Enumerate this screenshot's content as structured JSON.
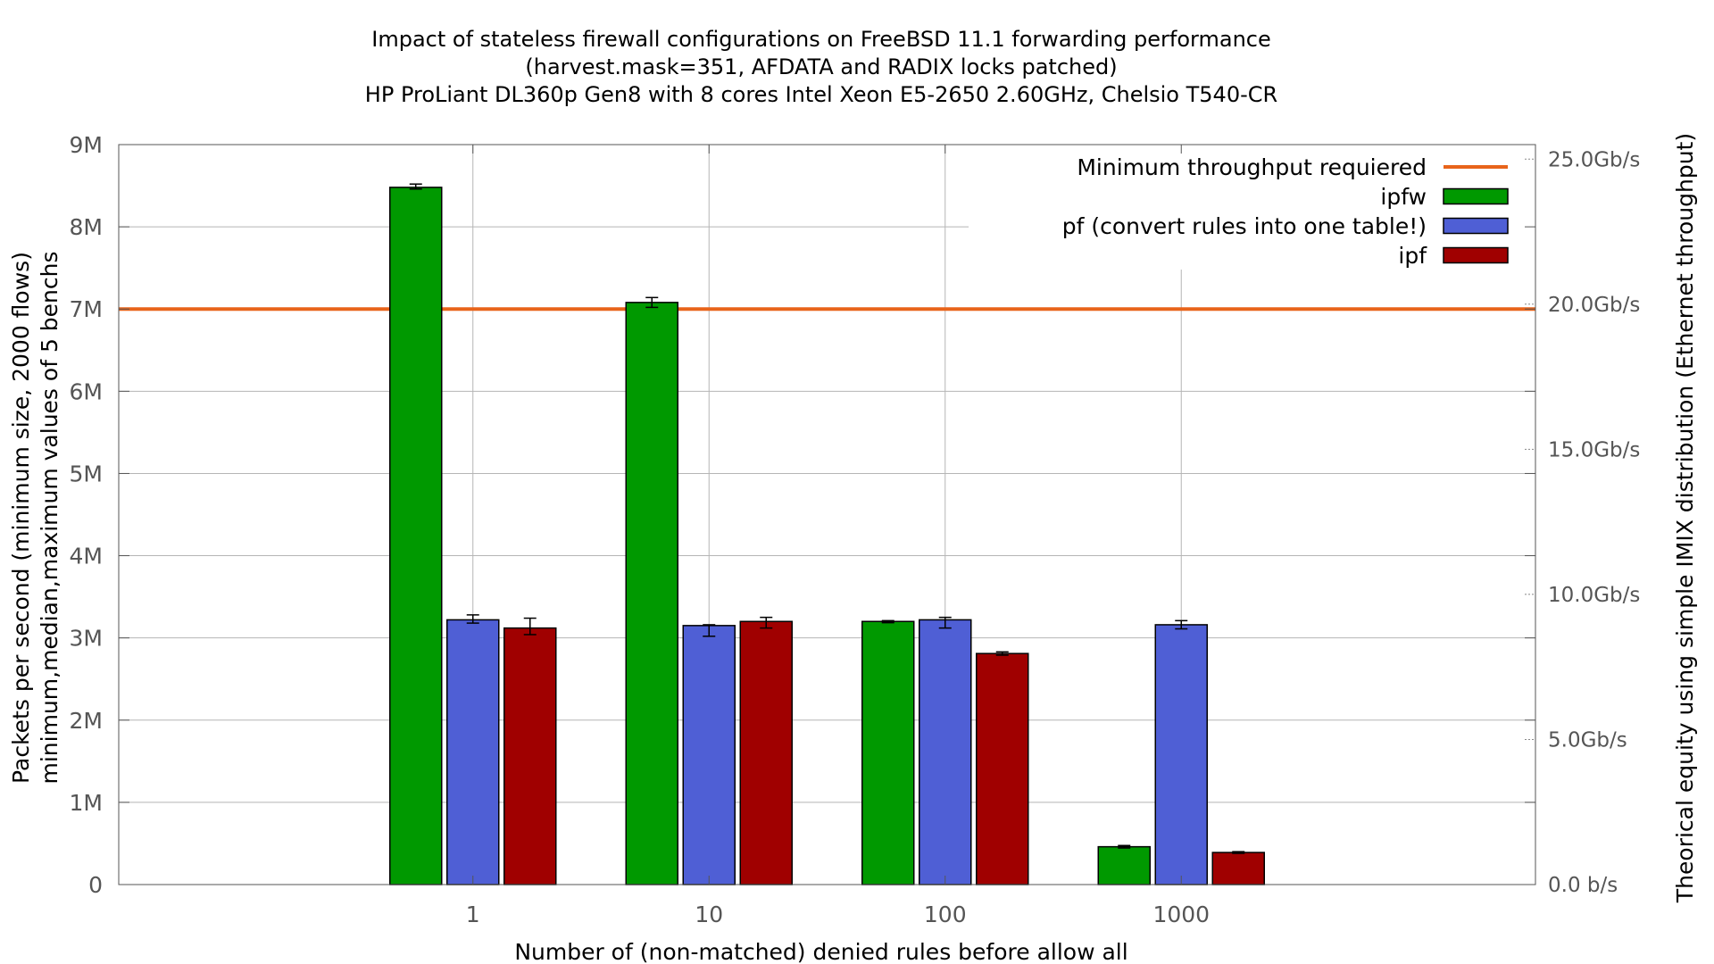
{
  "chart_data": {
    "type": "bar",
    "title": [
      "Impact of stateless firewall configurations on FreeBSD 11.1 forwarding performance",
      "(harvest.mask=351, AFDATA and RADIX locks patched)",
      "HP ProLiant DL360p Gen8 with 8 cores Intel Xeon E5-2650 2.60GHz, Chelsio T540-CR"
    ],
    "xlabel": "Number of (non-matched) denied rules before allow all",
    "ylabel": [
      "Packets per second (minimum size, 2000 flows)",
      "minimum,median,maximum values of 5 benchs"
    ],
    "y2label": "Theorical equity using simple IMIX distribution (Ethernet throughput)",
    "categories": [
      "1",
      "10",
      "100",
      "1000"
    ],
    "ylim": [
      0,
      9000000
    ],
    "yticks": [
      {
        "value": 0,
        "label": "0"
      },
      {
        "value": 1000000,
        "label": "1M"
      },
      {
        "value": 2000000,
        "label": "2M"
      },
      {
        "value": 3000000,
        "label": "3M"
      },
      {
        "value": 4000000,
        "label": "4M"
      },
      {
        "value": 5000000,
        "label": "5M"
      },
      {
        "value": 6000000,
        "label": "6M"
      },
      {
        "value": 7000000,
        "label": "7M"
      },
      {
        "value": 8000000,
        "label": "8M"
      },
      {
        "value": 9000000,
        "label": "9M"
      }
    ],
    "y2lim": [
      0,
      25500000000
    ],
    "y2ticks": [
      {
        "value": 0,
        "label": "0.0 b/s"
      },
      {
        "value": 5000000000,
        "label": "5.0Gb/s"
      },
      {
        "value": 10000000000,
        "label": "10.0Gb/s"
      },
      {
        "value": 15000000000,
        "label": "15.0Gb/s"
      },
      {
        "value": 20000000000,
        "label": "20.0Gb/s"
      },
      {
        "value": 25000000000,
        "label": "25.0Gb/s"
      }
    ],
    "grid": true,
    "legend_position": "top-right",
    "reference_line": {
      "name": "Minimum throughput requiered",
      "value": 7000000,
      "color": "#e8641a"
    },
    "series": [
      {
        "name": "ipfw",
        "color": "#009900",
        "values": [
          8480000,
          7080000,
          3200000,
          460000
        ],
        "min": [
          8460000,
          7020000,
          3185000,
          445000
        ],
        "max": [
          8520000,
          7140000,
          3210000,
          475000
        ]
      },
      {
        "name": "pf (convert rules into one table!)",
        "color": "#4f5fd5",
        "values": [
          3220000,
          3150000,
          3220000,
          3160000
        ],
        "min": [
          3180000,
          3020000,
          3120000,
          3110000
        ],
        "max": [
          3280000,
          3160000,
          3250000,
          3210000
        ]
      },
      {
        "name": "ipf",
        "color": "#a00000",
        "values": [
          3120000,
          3200000,
          2810000,
          390000
        ],
        "min": [
          3040000,
          3120000,
          2790000,
          380000
        ],
        "max": [
          3240000,
          3250000,
          2830000,
          400000
        ]
      }
    ]
  }
}
